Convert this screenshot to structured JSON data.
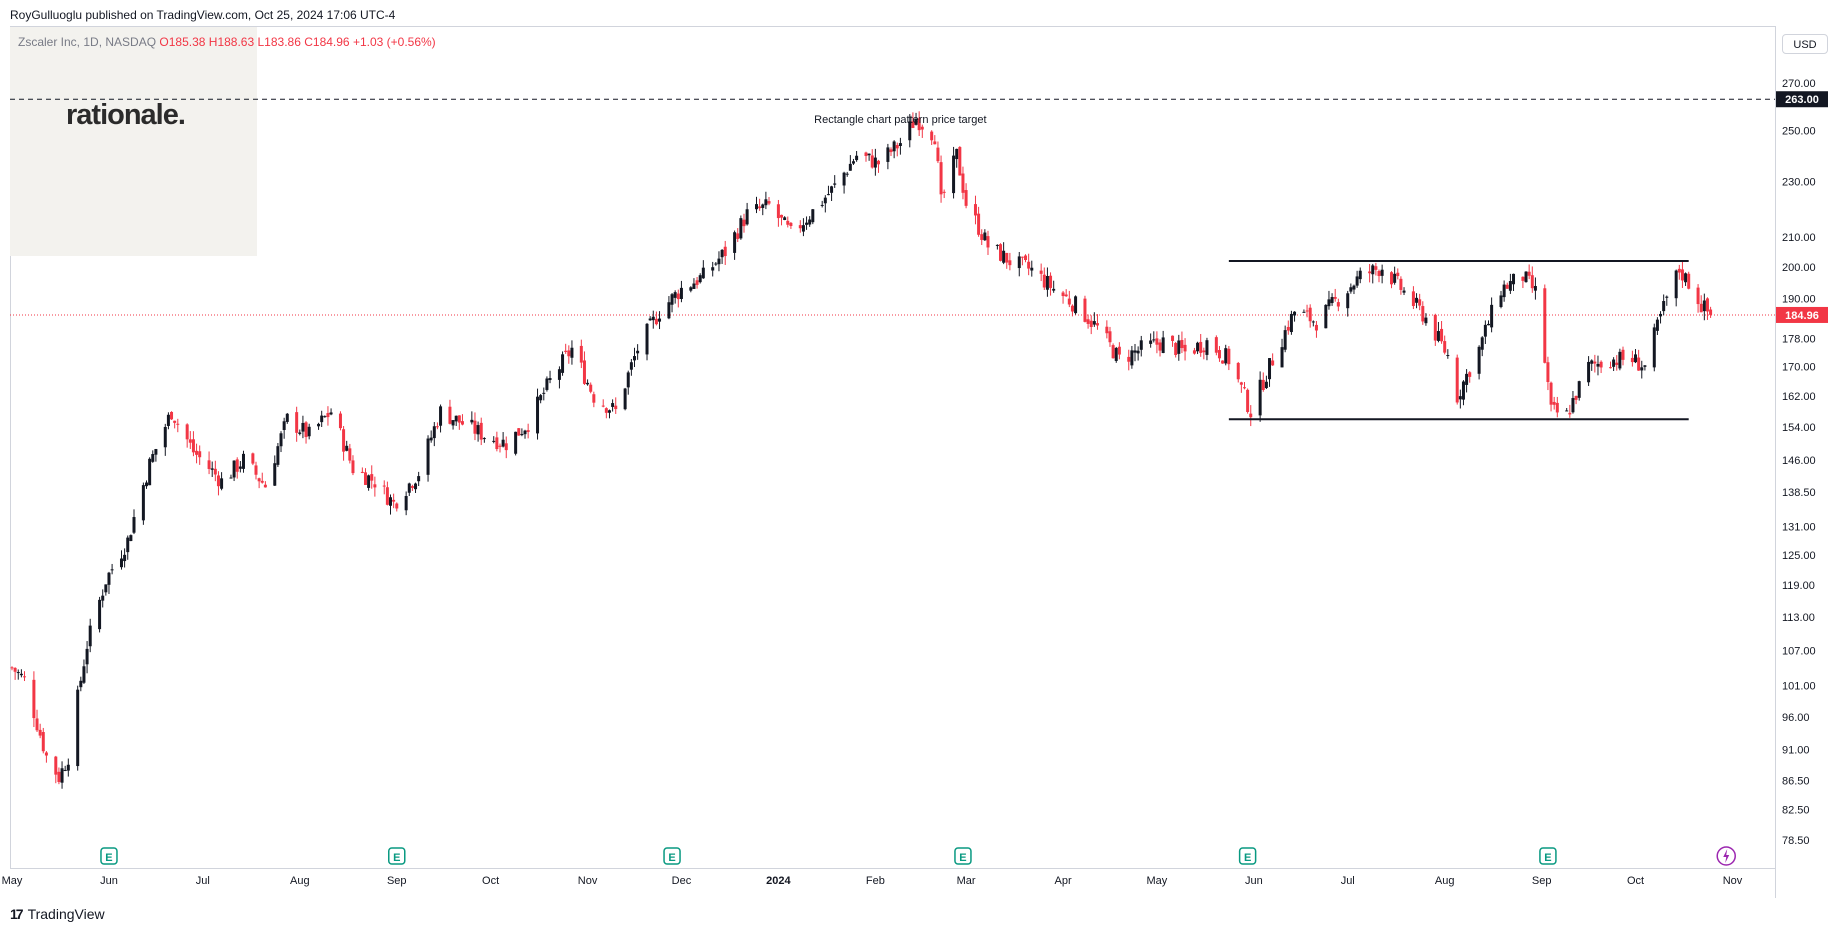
{
  "header": {
    "published": "RoyGulluoglu published on TradingView.com, Oct 25, 2024 17:06 UTC-4"
  },
  "legend": {
    "symbol": "Zscaler Inc, 1D, NASDAQ",
    "open": "O185.38",
    "high": "H188.63",
    "low": "L183.86",
    "close": "C184.96",
    "change": "+1.03 (+0.56%)"
  },
  "logo": {
    "text": "rationale."
  },
  "currency": "USD",
  "footer": {
    "brand": "TradingView"
  },
  "colors": {
    "up": "#131722",
    "down": "#f23645",
    "price_line": "#f23645",
    "target_label_bg": "#131722"
  },
  "events": {
    "earnings_icon": "E",
    "marker_icon": "lightning-icon"
  },
  "chart_data": {
    "type": "candlestick",
    "y_scale": "log",
    "ylim": [
      76,
      285
    ],
    "y_ticks": [
      "270.00",
      "250.00",
      "230.00",
      "210.00",
      "200.00",
      "190.00",
      "178.00",
      "170.00",
      "162.00",
      "154.00",
      "146.00",
      "138.50",
      "131.00",
      "125.00",
      "119.00",
      "113.00",
      "107.00",
      "101.00",
      "96.00",
      "91.00",
      "86.50",
      "82.50",
      "78.50"
    ],
    "x_range": [
      "2023-05-01",
      "2024-11-05"
    ],
    "x_ticks": [
      {
        "label": "May",
        "date": "2023-05-01"
      },
      {
        "label": "Jun",
        "date": "2023-06-01"
      },
      {
        "label": "Jul",
        "date": "2023-07-01"
      },
      {
        "label": "Aug",
        "date": "2023-08-01"
      },
      {
        "label": "Sep",
        "date": "2023-09-01"
      },
      {
        "label": "Oct",
        "date": "2023-10-01"
      },
      {
        "label": "Nov",
        "date": "2023-11-01"
      },
      {
        "label": "Dec",
        "date": "2023-12-01"
      },
      {
        "label": "2024",
        "date": "2024-01-01",
        "bold": true
      },
      {
        "label": "Feb",
        "date": "2024-02-01"
      },
      {
        "label": "Mar",
        "date": "2024-03-01"
      },
      {
        "label": "Apr",
        "date": "2024-04-01"
      },
      {
        "label": "May",
        "date": "2024-05-01"
      },
      {
        "label": "Jun",
        "date": "2024-06-01"
      },
      {
        "label": "Jul",
        "date": "2024-07-01"
      },
      {
        "label": "Aug",
        "date": "2024-08-01"
      },
      {
        "label": "Sep",
        "date": "2024-09-01"
      },
      {
        "label": "Oct",
        "date": "2024-10-01"
      },
      {
        "label": "Nov",
        "date": "2024-11-01"
      }
    ],
    "price_path": [
      {
        "date": "2023-05-01",
        "close": 104
      },
      {
        "date": "2023-05-05",
        "close": 102
      },
      {
        "date": "2023-05-09",
        "close": 95
      },
      {
        "date": "2023-05-12",
        "close": 90
      },
      {
        "date": "2023-05-16",
        "close": 87
      },
      {
        "date": "2023-05-19",
        "close": 90
      },
      {
        "date": "2023-05-25",
        "close": 108
      },
      {
        "date": "2023-05-31",
        "close": 120
      },
      {
        "date": "2023-06-07",
        "close": 128
      },
      {
        "date": "2023-06-14",
        "close": 145
      },
      {
        "date": "2023-06-21",
        "close": 158
      },
      {
        "date": "2023-06-28",
        "close": 148
      },
      {
        "date": "2023-07-07",
        "close": 141
      },
      {
        "date": "2023-07-14",
        "close": 146
      },
      {
        "date": "2023-07-21",
        "close": 140
      },
      {
        "date": "2023-07-28",
        "close": 156
      },
      {
        "date": "2023-08-04",
        "close": 152
      },
      {
        "date": "2023-08-11",
        "close": 158
      },
      {
        "date": "2023-08-18",
        "close": 144
      },
      {
        "date": "2023-08-25",
        "close": 141
      },
      {
        "date": "2023-08-31",
        "close": 136
      },
      {
        "date": "2023-09-08",
        "close": 143
      },
      {
        "date": "2023-09-15",
        "close": 158
      },
      {
        "date": "2023-09-22",
        "close": 155
      },
      {
        "date": "2023-09-29",
        "close": 152
      },
      {
        "date": "2023-10-06",
        "close": 150
      },
      {
        "date": "2023-10-13",
        "close": 155
      },
      {
        "date": "2023-10-20",
        "close": 166
      },
      {
        "date": "2023-10-27",
        "close": 175
      },
      {
        "date": "2023-11-03",
        "close": 162
      },
      {
        "date": "2023-11-10",
        "close": 158
      },
      {
        "date": "2023-11-17",
        "close": 175
      },
      {
        "date": "2023-11-24",
        "close": 186
      },
      {
        "date": "2023-12-01",
        "close": 193
      },
      {
        "date": "2023-12-08",
        "close": 197
      },
      {
        "date": "2023-12-15",
        "close": 205
      },
      {
        "date": "2023-12-22",
        "close": 218
      },
      {
        "date": "2023-12-29",
        "close": 221
      },
      {
        "date": "2024-01-05",
        "close": 211
      },
      {
        "date": "2024-01-12",
        "close": 219
      },
      {
        "date": "2024-01-19",
        "close": 228
      },
      {
        "date": "2024-01-26",
        "close": 240
      },
      {
        "date": "2024-02-02",
        "close": 237
      },
      {
        "date": "2024-02-09",
        "close": 245
      },
      {
        "date": "2024-02-14",
        "close": 255
      },
      {
        "date": "2024-02-20",
        "close": 248
      },
      {
        "date": "2024-02-22",
        "close": 222
      },
      {
        "date": "2024-02-27",
        "close": 240
      },
      {
        "date": "2024-03-01",
        "close": 222
      },
      {
        "date": "2024-03-08",
        "close": 207
      },
      {
        "date": "2024-03-15",
        "close": 202
      },
      {
        "date": "2024-03-22",
        "close": 199
      },
      {
        "date": "2024-03-29",
        "close": 193
      },
      {
        "date": "2024-04-05",
        "close": 188
      },
      {
        "date": "2024-04-12",
        "close": 181
      },
      {
        "date": "2024-04-19",
        "close": 172
      },
      {
        "date": "2024-04-26",
        "close": 175
      },
      {
        "date": "2024-05-03",
        "close": 177
      },
      {
        "date": "2024-05-10",
        "close": 174
      },
      {
        "date": "2024-05-17",
        "close": 177
      },
      {
        "date": "2024-05-24",
        "close": 172
      },
      {
        "date": "2024-05-31",
        "close": 158
      },
      {
        "date": "2024-06-07",
        "close": 172
      },
      {
        "date": "2024-06-14",
        "close": 186
      },
      {
        "date": "2024-06-21",
        "close": 183
      },
      {
        "date": "2024-06-28",
        "close": 190
      },
      {
        "date": "2024-07-05",
        "close": 197
      },
      {
        "date": "2024-07-12",
        "close": 200
      },
      {
        "date": "2024-07-19",
        "close": 192
      },
      {
        "date": "2024-07-26",
        "close": 184
      },
      {
        "date": "2024-08-02",
        "close": 173
      },
      {
        "date": "2024-08-05",
        "close": 162
      },
      {
        "date": "2024-08-12",
        "close": 175
      },
      {
        "date": "2024-08-19",
        "close": 193
      },
      {
        "date": "2024-08-26",
        "close": 197
      },
      {
        "date": "2024-08-30",
        "close": 192
      },
      {
        "date": "2024-09-04",
        "close": 158
      },
      {
        "date": "2024-09-09",
        "close": 157
      },
      {
        "date": "2024-09-16",
        "close": 170
      },
      {
        "date": "2024-09-23",
        "close": 172
      },
      {
        "date": "2024-09-30",
        "close": 172
      },
      {
        "date": "2024-10-04",
        "close": 170
      },
      {
        "date": "2024-10-11",
        "close": 190
      },
      {
        "date": "2024-10-15",
        "close": 199
      },
      {
        "date": "2024-10-18",
        "close": 195
      },
      {
        "date": "2024-10-22",
        "close": 188
      },
      {
        "date": "2024-10-25",
        "close": 184.96
      }
    ],
    "target_line": {
      "price": 263.0,
      "label": "263.00"
    },
    "current_price": {
      "price": 184.96,
      "label": "184.96"
    },
    "rectangle_top": {
      "price": 202,
      "from": "2024-05-24",
      "to": "2024-10-18"
    },
    "rectangle_bottom": {
      "price": 156,
      "from": "2024-05-24",
      "to": "2024-10-18"
    },
    "annotation": {
      "text": "Rectangle chart pattern price target",
      "date": "2024-02-09",
      "price": 263
    },
    "earnings_dates": [
      "2023-06-01",
      "2023-09-01",
      "2023-11-28",
      "2024-02-29",
      "2024-05-30",
      "2024-09-03"
    ],
    "marker_date": "2024-10-30"
  }
}
